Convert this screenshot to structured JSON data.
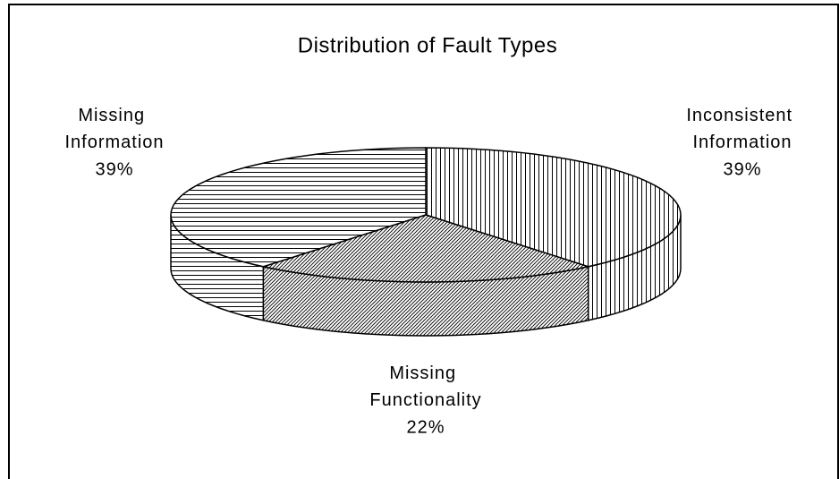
{
  "chart_data": {
    "type": "pie3d",
    "title": "Distribution of Fault Types",
    "categories": [
      "Inconsistent Information",
      "Missing Functionality",
      "Missing Information"
    ],
    "values": [
      39,
      22,
      39
    ],
    "value_labels": [
      "39%",
      "22%",
      "39%"
    ],
    "patterns": [
      "vertical",
      "diagonal",
      "horizontal"
    ],
    "color": "#000000"
  }
}
